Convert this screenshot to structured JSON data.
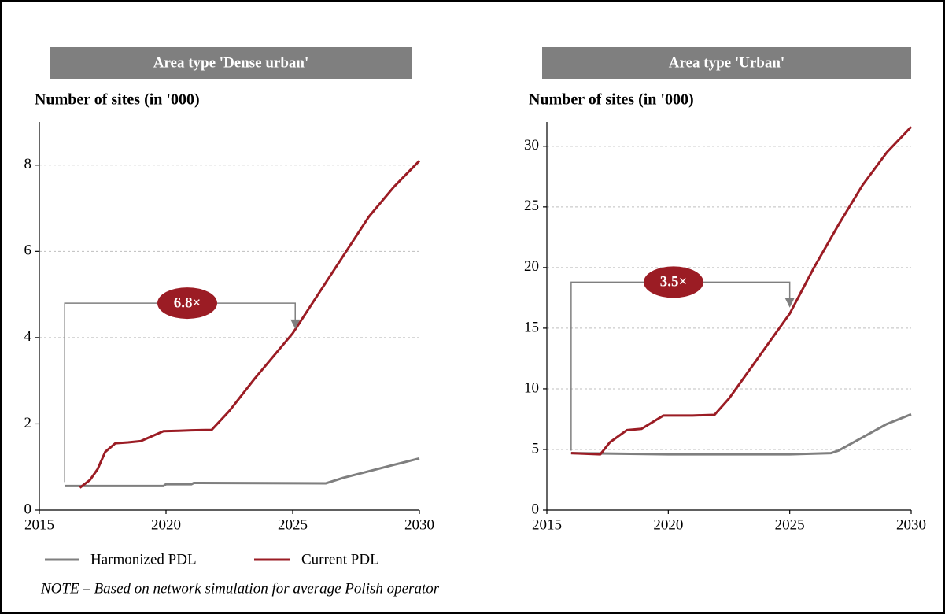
{
  "chart_data": [
    {
      "type": "line",
      "title": "Area type 'Dense urban'",
      "y_label": "Number of sites (in '000)",
      "xlim": [
        2015,
        2030
      ],
      "xticks": [
        2015,
        2020,
        2025,
        2030
      ],
      "ylim": [
        0,
        9
      ],
      "yticks": [
        0,
        2,
        4,
        6,
        8
      ],
      "grid": true,
      "annotation": "6.8×",
      "series": [
        {
          "name": "Harmonized PDL",
          "color": "#7f7f7f",
          "x": [
            2016,
            2019.9,
            2020,
            2021,
            2021.1,
            2026.3,
            2027,
            2028,
            2029,
            2030
          ],
          "values": [
            0.56,
            0.56,
            0.6,
            0.6,
            0.63,
            0.62,
            0.75,
            0.9,
            1.05,
            1.2
          ]
        },
        {
          "name": "Current PDL",
          "color": "#9b1c24",
          "x": [
            2016.6,
            2017,
            2017.3,
            2017.6,
            2018,
            2018.5,
            2019,
            2019.9,
            2020.5,
            2021,
            2021.8,
            2022.5,
            2023.5,
            2024.5,
            2025,
            2026,
            2027,
            2028,
            2029,
            2030
          ],
          "values": [
            0.52,
            0.7,
            0.95,
            1.35,
            1.55,
            1.57,
            1.6,
            1.83,
            1.84,
            1.85,
            1.86,
            2.3,
            3.05,
            3.75,
            4.1,
            5.0,
            5.9,
            6.8,
            7.5,
            8.1
          ]
        }
      ]
    },
    {
      "type": "line",
      "title": "Area type 'Urban'",
      "y_label": "Number of sites (in '000)",
      "xlim": [
        2015,
        2030
      ],
      "xticks": [
        2015,
        2020,
        2025,
        2030
      ],
      "ylim": [
        0,
        32
      ],
      "yticks": [
        0,
        5,
        10,
        15,
        20,
        25,
        30
      ],
      "grid": true,
      "annotation": "3.5×",
      "series": [
        {
          "name": "Harmonized PDL",
          "color": "#7f7f7f",
          "x": [
            2016,
            2020,
            2025,
            2026.7,
            2027,
            2028,
            2029,
            2030
          ],
          "values": [
            4.7,
            4.6,
            4.6,
            4.7,
            4.9,
            6.0,
            7.1,
            7.9
          ]
        },
        {
          "name": "Current PDL",
          "color": "#9b1c24",
          "x": [
            2016,
            2017.2,
            2017.6,
            2018.3,
            2018.9,
            2019.8,
            2021,
            2021.9,
            2022.5,
            2023.5,
            2024.5,
            2025,
            2026,
            2027,
            2028,
            2029,
            2030
          ],
          "values": [
            4.7,
            4.6,
            5.6,
            6.6,
            6.7,
            7.8,
            7.8,
            7.85,
            9.2,
            12,
            14.8,
            16.2,
            20,
            23.5,
            26.8,
            29.5,
            31.6
          ]
        }
      ]
    }
  ],
  "note": "NOTE – Based on network simulation for average Polish operator"
}
